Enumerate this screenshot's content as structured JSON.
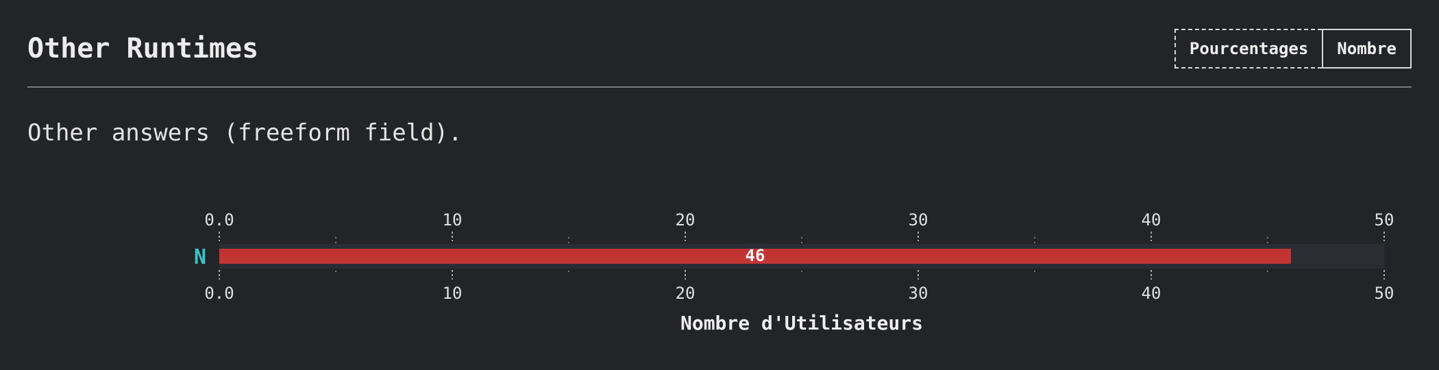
{
  "header": {
    "title": "Other Runtimes",
    "toggle": {
      "percent_label": "Pourcentages",
      "count_label": "Nombre"
    }
  },
  "description": "Other answers (freeform field).",
  "colors": {
    "bar": "#c23434",
    "track": "#2c2d33",
    "category": "#3ec1c6"
  },
  "chart_data": {
    "type": "bar",
    "orientation": "horizontal",
    "categories": [
      "N"
    ],
    "values": [
      46
    ],
    "xlim": [
      0,
      50
    ],
    "ticks": [
      "0.0",
      "10",
      "20",
      "30",
      "40",
      "50"
    ],
    "xlabel": "Nombre d'Utilisateurs",
    "axis_position": "top-and-bottom",
    "grid": false
  }
}
